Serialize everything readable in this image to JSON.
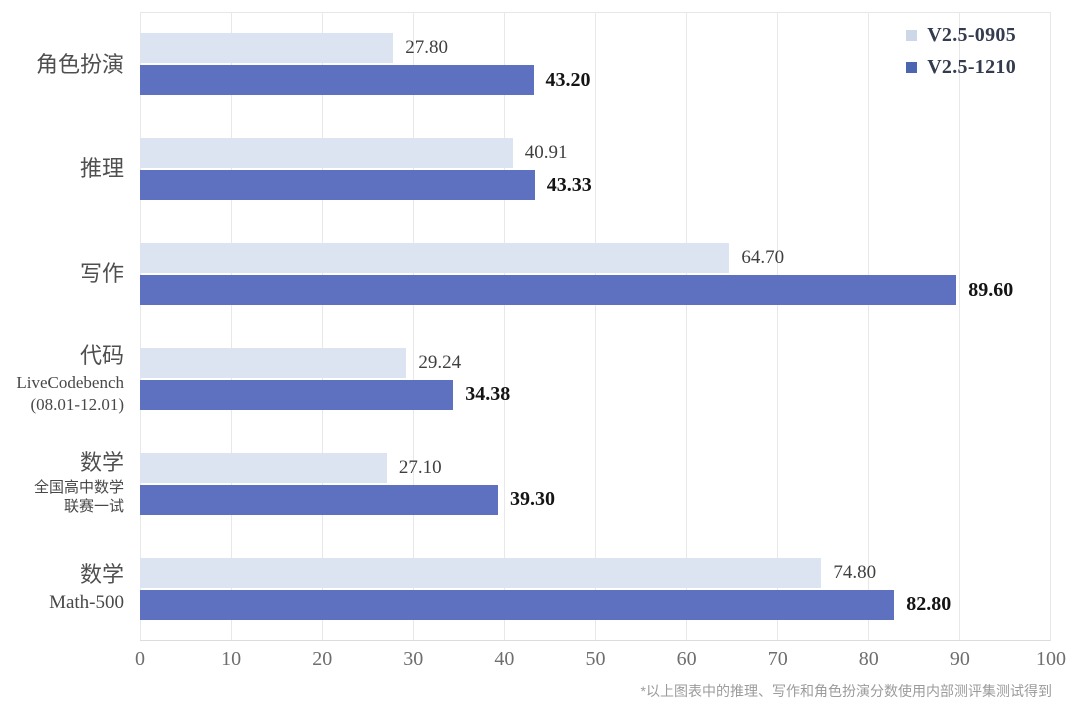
{
  "chart_data": {
    "type": "bar",
    "orientation": "horizontal",
    "categories": [
      {
        "label": "角色扮演",
        "sublabel_lines": []
      },
      {
        "label": "推理",
        "sublabel_lines": []
      },
      {
        "label": "写作",
        "sublabel_lines": []
      },
      {
        "label": "代码",
        "sublabel_lines": [
          "LiveCodebench",
          "(08.01-12.01)"
        ],
        "sublabel_latin": true
      },
      {
        "label": "数学",
        "sublabel_lines": [
          "全国高中数学",
          "联赛一试"
        ],
        "sublabel_latin": false
      },
      {
        "label": "数学",
        "sublabel_lines": [
          "Math-500"
        ],
        "sublabel_latin": true
      }
    ],
    "series": [
      {
        "name": "V2.5-0905",
        "color": "#dce4f1",
        "swatch_color": "#ccd7e8",
        "emphasis": false,
        "values": [
          27.8,
          40.91,
          64.7,
          29.24,
          27.1,
          74.8
        ],
        "value_labels": [
          "27.80",
          "40.91",
          "64.70",
          "29.24",
          "27.10",
          "74.80"
        ]
      },
      {
        "name": "V2.5-1210",
        "color": "#5e71c0",
        "swatch_color": "#4b65b1",
        "emphasis": true,
        "values": [
          43.2,
          43.33,
          89.6,
          34.38,
          39.3,
          82.8
        ],
        "value_labels": [
          "43.20",
          "43.33",
          "89.60",
          "34.38",
          "39.30",
          "82.80"
        ]
      }
    ],
    "xlim": [
      0,
      100
    ],
    "x_ticks": [
      "0",
      "10",
      "20",
      "30",
      "40",
      "50",
      "60",
      "70",
      "80",
      "90",
      "100"
    ],
    "grid": true,
    "legend_position": "top-right",
    "footnote": "*以上图表中的推理、写作和角色扮演分数使用内部测评集测试得到"
  }
}
